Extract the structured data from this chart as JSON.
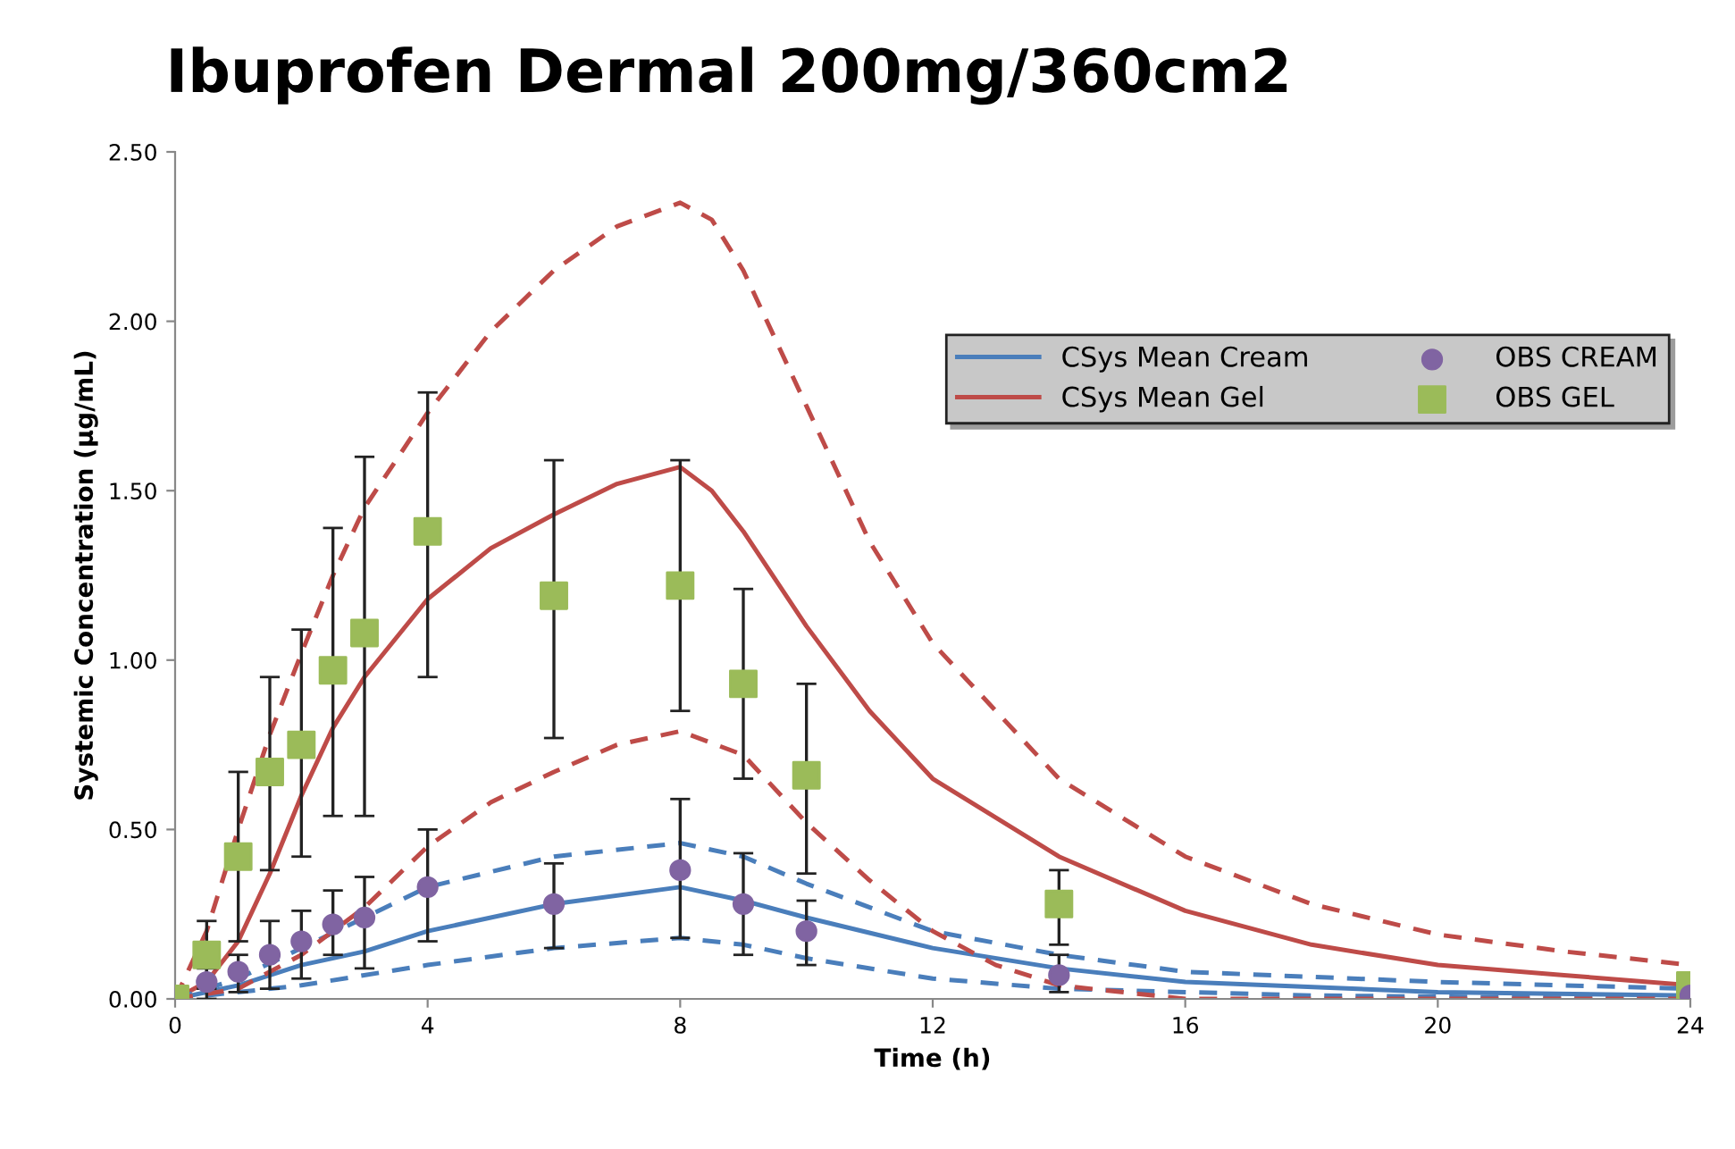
{
  "chart_data": {
    "type": "line",
    "title": "Ibuprofen Dermal 200mg/360cm2",
    "xlabel": "Time (h)",
    "ylabel": "Systemic Concentration (µg/mL)",
    "xlim": [
      0,
      24
    ],
    "xticks": [
      0,
      4,
      8,
      12,
      16,
      20,
      24
    ],
    "ylim": [
      0,
      2.5
    ],
    "yticks": [
      {
        "value": 0,
        "label": "0.00"
      },
      {
        "value": 0.5,
        "label": "0.50"
      },
      {
        "value": 1,
        "label": "1.00"
      },
      {
        "value": 1.5,
        "label": "1.50"
      },
      {
        "value": 2,
        "label": "2.00"
      },
      {
        "value": 2.5,
        "label": "2.50"
      }
    ],
    "grid": false,
    "legend": "top right",
    "series": [
      {
        "name": "CSys Mean Cream",
        "line_style": "solid",
        "marker": "none",
        "color": "#4a7ebb",
        "x": [
          0,
          1,
          2,
          3,
          4,
          6,
          8,
          9,
          10,
          12,
          14,
          16,
          20,
          24
        ],
        "values": [
          0,
          0.04,
          0.1,
          0.14,
          0.2,
          0.28,
          0.33,
          0.29,
          0.24,
          0.15,
          0.09,
          0.05,
          0.02,
          0.01
        ]
      },
      {
        "name": "CSys Mean Gel",
        "line_style": "solid",
        "marker": "none",
        "color": "#be4b48",
        "x": [
          0,
          0.5,
          1,
          1.5,
          2,
          2.5,
          3,
          4,
          5,
          6,
          7,
          8,
          8.5,
          9,
          10,
          11,
          12,
          14,
          16,
          18,
          20,
          22,
          24
        ],
        "values": [
          0,
          0.05,
          0.17,
          0.37,
          0.6,
          0.8,
          0.95,
          1.18,
          1.33,
          1.43,
          1.52,
          1.57,
          1.5,
          1.38,
          1.1,
          0.85,
          0.65,
          0.42,
          0.26,
          0.16,
          0.1,
          0.07,
          0.04
        ]
      },
      {
        "name": "OBS CREAM",
        "type": "scatter",
        "marker": "circle",
        "color": "#8064a2",
        "x": [
          0.5,
          1,
          1.5,
          2,
          2.5,
          3,
          4,
          6,
          8,
          9,
          10,
          14,
          24
        ],
        "values": [
          0.05,
          0.08,
          0.13,
          0.17,
          0.22,
          0.24,
          0.33,
          0.28,
          0.38,
          0.28,
          0.2,
          0.07,
          0.01
        ],
        "errors": [
          [
            0,
            0.09
          ],
          [
            0.02,
            0.13
          ],
          [
            0.03,
            0.23
          ],
          [
            0.06,
            0.26
          ],
          [
            0.13,
            0.32
          ],
          [
            0.09,
            0.36
          ],
          [
            0.17,
            0.5
          ],
          [
            0.15,
            0.4
          ],
          [
            0.18,
            0.59
          ],
          [
            0.13,
            0.43
          ],
          [
            0.1,
            0.29
          ],
          [
            0.02,
            0.13
          ],
          null
        ]
      },
      {
        "name": "OBS GEL",
        "type": "scatter",
        "marker": "square",
        "color": "#9bbb59",
        "x": [
          0,
          0.5,
          1,
          1.5,
          2,
          2.5,
          3,
          4,
          6,
          8,
          9,
          10,
          14,
          24
        ],
        "values": [
          0,
          0.13,
          0.42,
          0.67,
          0.75,
          0.97,
          1.08,
          1.38,
          1.19,
          1.22,
          0.93,
          0.66,
          0.28,
          0.04
        ],
        "errors": [
          null,
          [
            0.03,
            0.23
          ],
          [
            0.17,
            0.67
          ],
          [
            0.38,
            0.95
          ],
          [
            0.42,
            1.09
          ],
          [
            0.54,
            1.39
          ],
          [
            0.54,
            1.6
          ],
          [
            0.95,
            1.79
          ],
          [
            0.77,
            1.59
          ],
          [
            0.85,
            1.59
          ],
          [
            0.65,
            1.21
          ],
          [
            0.37,
            0.93
          ],
          [
            0.16,
            0.38
          ],
          null
        ]
      },
      {
        "type": "line",
        "line_style": "dashed",
        "marker": "none",
        "color": "#4a7ebb",
        "x": [
          0,
          1,
          2,
          3,
          4,
          6,
          8,
          9,
          10,
          12,
          14,
          16,
          20,
          24
        ],
        "values": [
          0,
          0.06,
          0.15,
          0.24,
          0.33,
          0.42,
          0.46,
          0.42,
          0.34,
          0.2,
          0.13,
          0.08,
          0.05,
          0.03
        ]
      },
      {
        "type": "line",
        "line_style": "dashed",
        "marker": "none",
        "color": "#4a7ebb",
        "x": [
          0,
          2,
          4,
          6,
          8,
          9,
          10,
          12,
          14,
          18,
          24
        ],
        "values": [
          0,
          0.04,
          0.1,
          0.15,
          0.18,
          0.16,
          0.12,
          0.06,
          0.03,
          0.01,
          0
        ]
      },
      {
        "type": "line",
        "line_style": "dashed",
        "marker": "none",
        "color": "#be4b48",
        "x": [
          0,
          0.5,
          1,
          1.5,
          2,
          2.5,
          3,
          4,
          5,
          6,
          7,
          8,
          8.5,
          9,
          10,
          11,
          12,
          14,
          16,
          18,
          20,
          22,
          24
        ],
        "values": [
          0,
          0.2,
          0.5,
          0.78,
          1.02,
          1.25,
          1.45,
          1.73,
          1.97,
          2.15,
          2.28,
          2.35,
          2.3,
          2.15,
          1.75,
          1.35,
          1.05,
          0.65,
          0.42,
          0.28,
          0.19,
          0.14,
          0.1
        ]
      },
      {
        "type": "line",
        "line_style": "dashed",
        "marker": "none",
        "color": "#be4b48",
        "x": [
          0,
          1,
          2,
          3,
          4,
          5,
          6,
          7,
          8,
          9,
          10,
          11,
          12,
          13,
          14,
          16,
          24
        ],
        "values": [
          0,
          0.03,
          0.13,
          0.27,
          0.45,
          0.58,
          0.67,
          0.75,
          0.79,
          0.72,
          0.52,
          0.35,
          0.2,
          0.1,
          0.04,
          0,
          0
        ]
      }
    ]
  }
}
